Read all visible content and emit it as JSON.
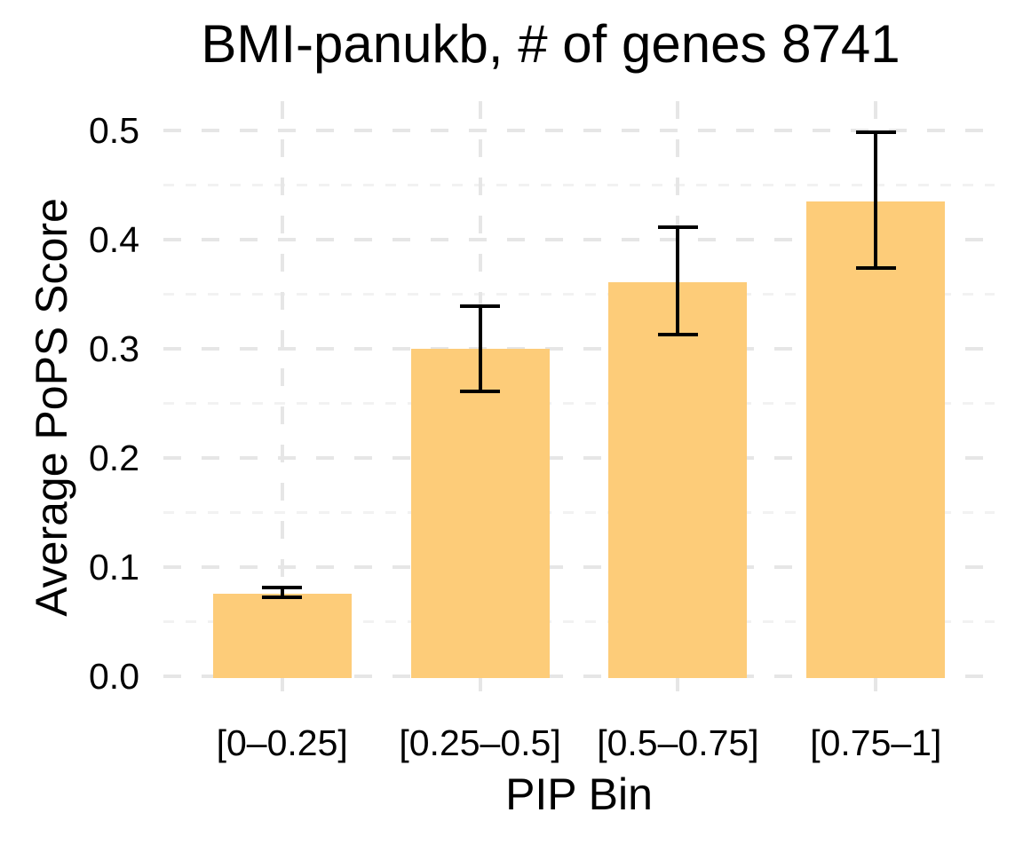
{
  "title": "BMI-panukb, # of genes 8741",
  "chart_data": {
    "type": "bar",
    "title": "BMI-panukb, # of genes 8741",
    "xlabel": "PIP Bin",
    "ylabel": "Average PoPS Score",
    "categories": [
      "[0–0.25]",
      "[0.25–0.5]",
      "[0.5–0.75]",
      "[0.75–1]"
    ],
    "values": [
      0.076,
      0.3,
      0.361,
      0.435
    ],
    "error_low": [
      0.072,
      0.261,
      0.313,
      0.374
    ],
    "error_high": [
      0.081,
      0.339,
      0.411,
      0.498
    ],
    "ylim": [
      0,
      0.5
    ],
    "yticks": [
      0,
      0.1,
      0.2,
      0.3,
      0.4,
      0.5
    ],
    "ytick_labels": [
      "0.0",
      "0.1",
      "0.2",
      "0.3",
      "0.4",
      "0.5"
    ],
    "minor_yticks": [
      0.05,
      0.15,
      0.25,
      0.35,
      0.45
    ],
    "grid": "dashed gray horizontal major+minor; dashed vertical gridline at each category center; no axis lines; no ticks",
    "legend": "none",
    "bar_color": "#FDCC79",
    "error_color": "#000000",
    "major_grid_color": "#e6e6e6",
    "minor_grid_color": "#f2f2f2",
    "background_color": "#ffffff",
    "text_color": "#000000"
  }
}
